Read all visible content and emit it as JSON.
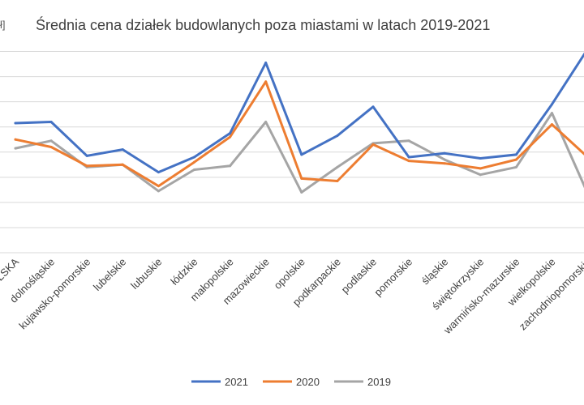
{
  "chart_data": {
    "type": "line",
    "title": "Średnia cena działek budowlanych poza miastami w latach 2019-2021",
    "ylabel_fragment": "ł]",
    "categories": [
      "POLSKA",
      "dolnośląskie",
      "kujawsko-pomorskie",
      "lubelskie",
      "lubuskie",
      "łódzkie",
      "małopolskie",
      "mazowieckie",
      "opolskie",
      "podkarpackie",
      "podlaskie",
      "pomorskie",
      "śląskie",
      "świętokrzyskie",
      "warmińsko-mazurskie",
      "wielkopolskie",
      "zachodniopomorskie"
    ],
    "ylim": [
      0,
      16
    ],
    "grid": true,
    "legend_position": "bottom",
    "series": [
      {
        "name": "2021",
        "color": "#4472c4",
        "values": [
          10.3,
          10.4,
          7.7,
          8.2,
          6.4,
          7.6,
          9.5,
          15.1,
          7.8,
          9.3,
          11.6,
          7.6,
          7.9,
          7.5,
          7.8,
          11.8,
          16.2
        ]
      },
      {
        "name": "2020",
        "color": "#ed7d31",
        "values": [
          9.0,
          8.4,
          6.9,
          7.0,
          5.3,
          7.2,
          9.2,
          13.6,
          5.9,
          5.7,
          8.6,
          7.3,
          7.1,
          6.7,
          7.4,
          10.2,
          7.6
        ]
      },
      {
        "name": "2019",
        "color": "#a5a5a5",
        "values": [
          8.3,
          8.9,
          6.8,
          7.0,
          4.9,
          6.6,
          6.9,
          10.4,
          4.8,
          6.8,
          8.7,
          8.9,
          7.4,
          6.2,
          6.8,
          11.1,
          4.7
        ]
      }
    ]
  }
}
